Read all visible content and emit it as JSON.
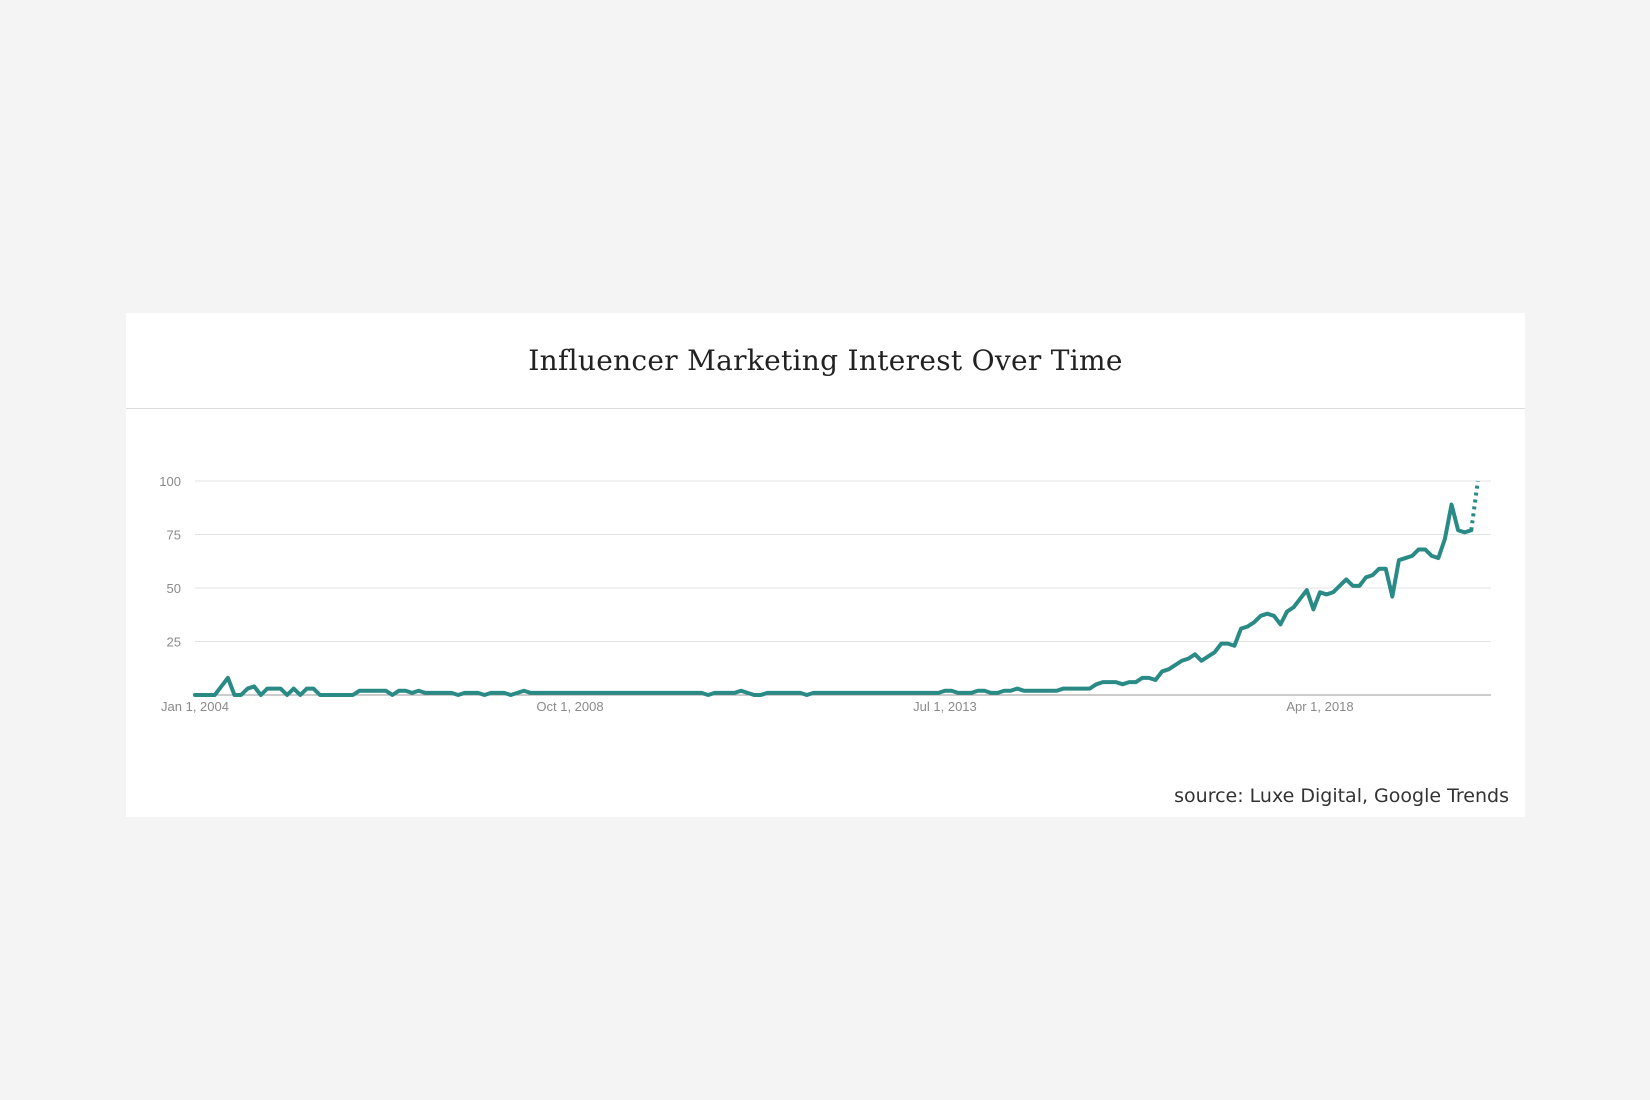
{
  "chart_data": {
    "type": "line",
    "title": "Influencer Marketing Interest Over Time",
    "source": "source: Luxe Digital, Google Trends",
    "xlabel": "",
    "ylabel": "",
    "ylim": [
      0,
      100
    ],
    "yticks": [
      {
        "value": 25,
        "label": "25"
      },
      {
        "value": 50,
        "label": "50"
      },
      {
        "value": 75,
        "label": "75"
      },
      {
        "value": 100,
        "label": "100"
      }
    ],
    "xticks": [
      {
        "date": "2004-01",
        "label": "Jan 1, 2004"
      },
      {
        "date": "2008-10",
        "label": "Oct 1, 2008"
      },
      {
        "date": "2013-07",
        "label": "Jul 1, 2013"
      },
      {
        "date": "2018-04",
        "label": "Apr 1, 2018"
      }
    ],
    "grid": true,
    "line_color": "#2a8a86",
    "series": [
      {
        "points": [
          [
            "2004-01",
            0
          ],
          [
            "2004-02",
            0
          ],
          [
            "2004-03",
            0
          ],
          [
            "2004-04",
            0
          ],
          [
            "2004-05",
            4
          ],
          [
            "2004-06",
            8
          ],
          [
            "2004-07",
            0
          ],
          [
            "2004-08",
            0
          ],
          [
            "2004-09",
            3
          ],
          [
            "2004-10",
            4
          ],
          [
            "2004-11",
            0
          ],
          [
            "2004-12",
            3
          ],
          [
            "2005-01",
            3
          ],
          [
            "2005-02",
            3
          ],
          [
            "2005-03",
            0
          ],
          [
            "2005-04",
            3
          ],
          [
            "2005-05",
            0
          ],
          [
            "2005-06",
            3
          ],
          [
            "2005-07",
            3
          ],
          [
            "2005-08",
            0
          ],
          [
            "2005-09",
            0
          ],
          [
            "2005-10",
            0
          ],
          [
            "2005-11",
            0
          ],
          [
            "2005-12",
            0
          ],
          [
            "2006-01",
            0
          ],
          [
            "2006-02",
            2
          ],
          [
            "2006-03",
            2
          ],
          [
            "2006-04",
            2
          ],
          [
            "2006-05",
            2
          ],
          [
            "2006-06",
            2
          ],
          [
            "2006-07",
            0
          ],
          [
            "2006-08",
            2
          ],
          [
            "2006-09",
            2
          ],
          [
            "2006-10",
            1
          ],
          [
            "2006-11",
            2
          ],
          [
            "2006-12",
            1
          ],
          [
            "2007-01",
            1
          ],
          [
            "2007-02",
            1
          ],
          [
            "2007-03",
            1
          ],
          [
            "2007-04",
            1
          ],
          [
            "2007-05",
            0
          ],
          [
            "2007-06",
            1
          ],
          [
            "2007-07",
            1
          ],
          [
            "2007-08",
            1
          ],
          [
            "2007-09",
            0
          ],
          [
            "2007-10",
            1
          ],
          [
            "2007-11",
            1
          ],
          [
            "2007-12",
            1
          ],
          [
            "2008-01",
            0
          ],
          [
            "2008-02",
            1
          ],
          [
            "2008-03",
            2
          ],
          [
            "2008-04",
            1
          ],
          [
            "2008-05",
            1
          ],
          [
            "2008-06",
            1
          ],
          [
            "2008-07",
            1
          ],
          [
            "2008-08",
            1
          ],
          [
            "2008-09",
            1
          ],
          [
            "2008-10",
            1
          ],
          [
            "2008-11",
            1
          ],
          [
            "2008-12",
            1
          ],
          [
            "2009-01",
            1
          ],
          [
            "2009-02",
            1
          ],
          [
            "2009-03",
            1
          ],
          [
            "2009-04",
            1
          ],
          [
            "2009-05",
            1
          ],
          [
            "2009-06",
            1
          ],
          [
            "2009-07",
            1
          ],
          [
            "2009-08",
            1
          ],
          [
            "2009-09",
            1
          ],
          [
            "2009-10",
            1
          ],
          [
            "2009-11",
            1
          ],
          [
            "2009-12",
            1
          ],
          [
            "2010-01",
            1
          ],
          [
            "2010-02",
            1
          ],
          [
            "2010-03",
            1
          ],
          [
            "2010-04",
            1
          ],
          [
            "2010-05",
            1
          ],
          [
            "2010-06",
            1
          ],
          [
            "2010-07",
            0
          ],
          [
            "2010-08",
            1
          ],
          [
            "2010-09",
            1
          ],
          [
            "2010-10",
            1
          ],
          [
            "2010-11",
            1
          ],
          [
            "2010-12",
            2
          ],
          [
            "2011-01",
            1
          ],
          [
            "2011-02",
            0
          ],
          [
            "2011-03",
            0
          ],
          [
            "2011-04",
            1
          ],
          [
            "2011-05",
            1
          ],
          [
            "2011-06",
            1
          ],
          [
            "2011-07",
            1
          ],
          [
            "2011-08",
            1
          ],
          [
            "2011-09",
            1
          ],
          [
            "2011-10",
            0
          ],
          [
            "2011-11",
            1
          ],
          [
            "2011-12",
            1
          ],
          [
            "2012-01",
            1
          ],
          [
            "2012-02",
            1
          ],
          [
            "2012-03",
            1
          ],
          [
            "2012-04",
            1
          ],
          [
            "2012-05",
            1
          ],
          [
            "2012-06",
            1
          ],
          [
            "2012-07",
            1
          ],
          [
            "2012-08",
            1
          ],
          [
            "2012-09",
            1
          ],
          [
            "2012-10",
            1
          ],
          [
            "2012-11",
            1
          ],
          [
            "2012-12",
            1
          ],
          [
            "2013-01",
            1
          ],
          [
            "2013-02",
            1
          ],
          [
            "2013-03",
            1
          ],
          [
            "2013-04",
            1
          ],
          [
            "2013-05",
            1
          ],
          [
            "2013-06",
            1
          ],
          [
            "2013-07",
            2
          ],
          [
            "2013-08",
            2
          ],
          [
            "2013-09",
            1
          ],
          [
            "2013-10",
            1
          ],
          [
            "2013-11",
            1
          ],
          [
            "2013-12",
            2
          ],
          [
            "2014-01",
            2
          ],
          [
            "2014-02",
            1
          ],
          [
            "2014-03",
            1
          ],
          [
            "2014-04",
            2
          ],
          [
            "2014-05",
            2
          ],
          [
            "2014-06",
            3
          ],
          [
            "2014-07",
            2
          ],
          [
            "2014-08",
            2
          ],
          [
            "2014-09",
            2
          ],
          [
            "2014-10",
            2
          ],
          [
            "2014-11",
            2
          ],
          [
            "2014-12",
            2
          ],
          [
            "2015-01",
            3
          ],
          [
            "2015-02",
            3
          ],
          [
            "2015-03",
            3
          ],
          [
            "2015-04",
            3
          ],
          [
            "2015-05",
            3
          ],
          [
            "2015-06",
            5
          ],
          [
            "2015-07",
            6
          ],
          [
            "2015-08",
            6
          ],
          [
            "2015-09",
            6
          ],
          [
            "2015-10",
            5
          ],
          [
            "2015-11",
            6
          ],
          [
            "2015-12",
            6
          ],
          [
            "2016-01",
            8
          ],
          [
            "2016-02",
            8
          ],
          [
            "2016-03",
            7
          ],
          [
            "2016-04",
            11
          ],
          [
            "2016-05",
            12
          ],
          [
            "2016-06",
            14
          ],
          [
            "2016-07",
            16
          ],
          [
            "2016-08",
            17
          ],
          [
            "2016-09",
            19
          ],
          [
            "2016-10",
            16
          ],
          [
            "2016-11",
            18
          ],
          [
            "2016-12",
            20
          ],
          [
            "2017-01",
            24
          ],
          [
            "2017-02",
            24
          ],
          [
            "2017-03",
            23
          ],
          [
            "2017-04",
            31
          ],
          [
            "2017-05",
            32
          ],
          [
            "2017-06",
            34
          ],
          [
            "2017-07",
            37
          ],
          [
            "2017-08",
            38
          ],
          [
            "2017-09",
            37
          ],
          [
            "2017-10",
            33
          ],
          [
            "2017-11",
            39
          ],
          [
            "2017-12",
            41
          ],
          [
            "2018-01",
            45
          ],
          [
            "2018-02",
            49
          ],
          [
            "2018-03",
            40
          ],
          [
            "2018-04",
            48
          ],
          [
            "2018-05",
            47
          ],
          [
            "2018-06",
            48
          ],
          [
            "2018-07",
            51
          ],
          [
            "2018-08",
            54
          ],
          [
            "2018-09",
            51
          ],
          [
            "2018-10",
            51
          ],
          [
            "2018-11",
            55
          ],
          [
            "2018-12",
            56
          ],
          [
            "2019-01",
            59
          ],
          [
            "2019-02",
            59
          ],
          [
            "2019-03",
            46
          ],
          [
            "2019-04",
            63
          ],
          [
            "2019-05",
            64
          ],
          [
            "2019-06",
            65
          ],
          [
            "2019-07",
            68
          ],
          [
            "2019-08",
            68
          ],
          [
            "2019-09",
            65
          ],
          [
            "2019-10",
            64
          ],
          [
            "2019-11",
            73
          ],
          [
            "2019-12",
            89
          ],
          [
            "2020-01",
            77
          ],
          [
            "2020-02",
            76
          ],
          [
            "2020-03",
            77
          ]
        ],
        "partial_points": [
          [
            "2020-03",
            77
          ],
          [
            "2020-04",
            100
          ]
        ]
      }
    ]
  }
}
